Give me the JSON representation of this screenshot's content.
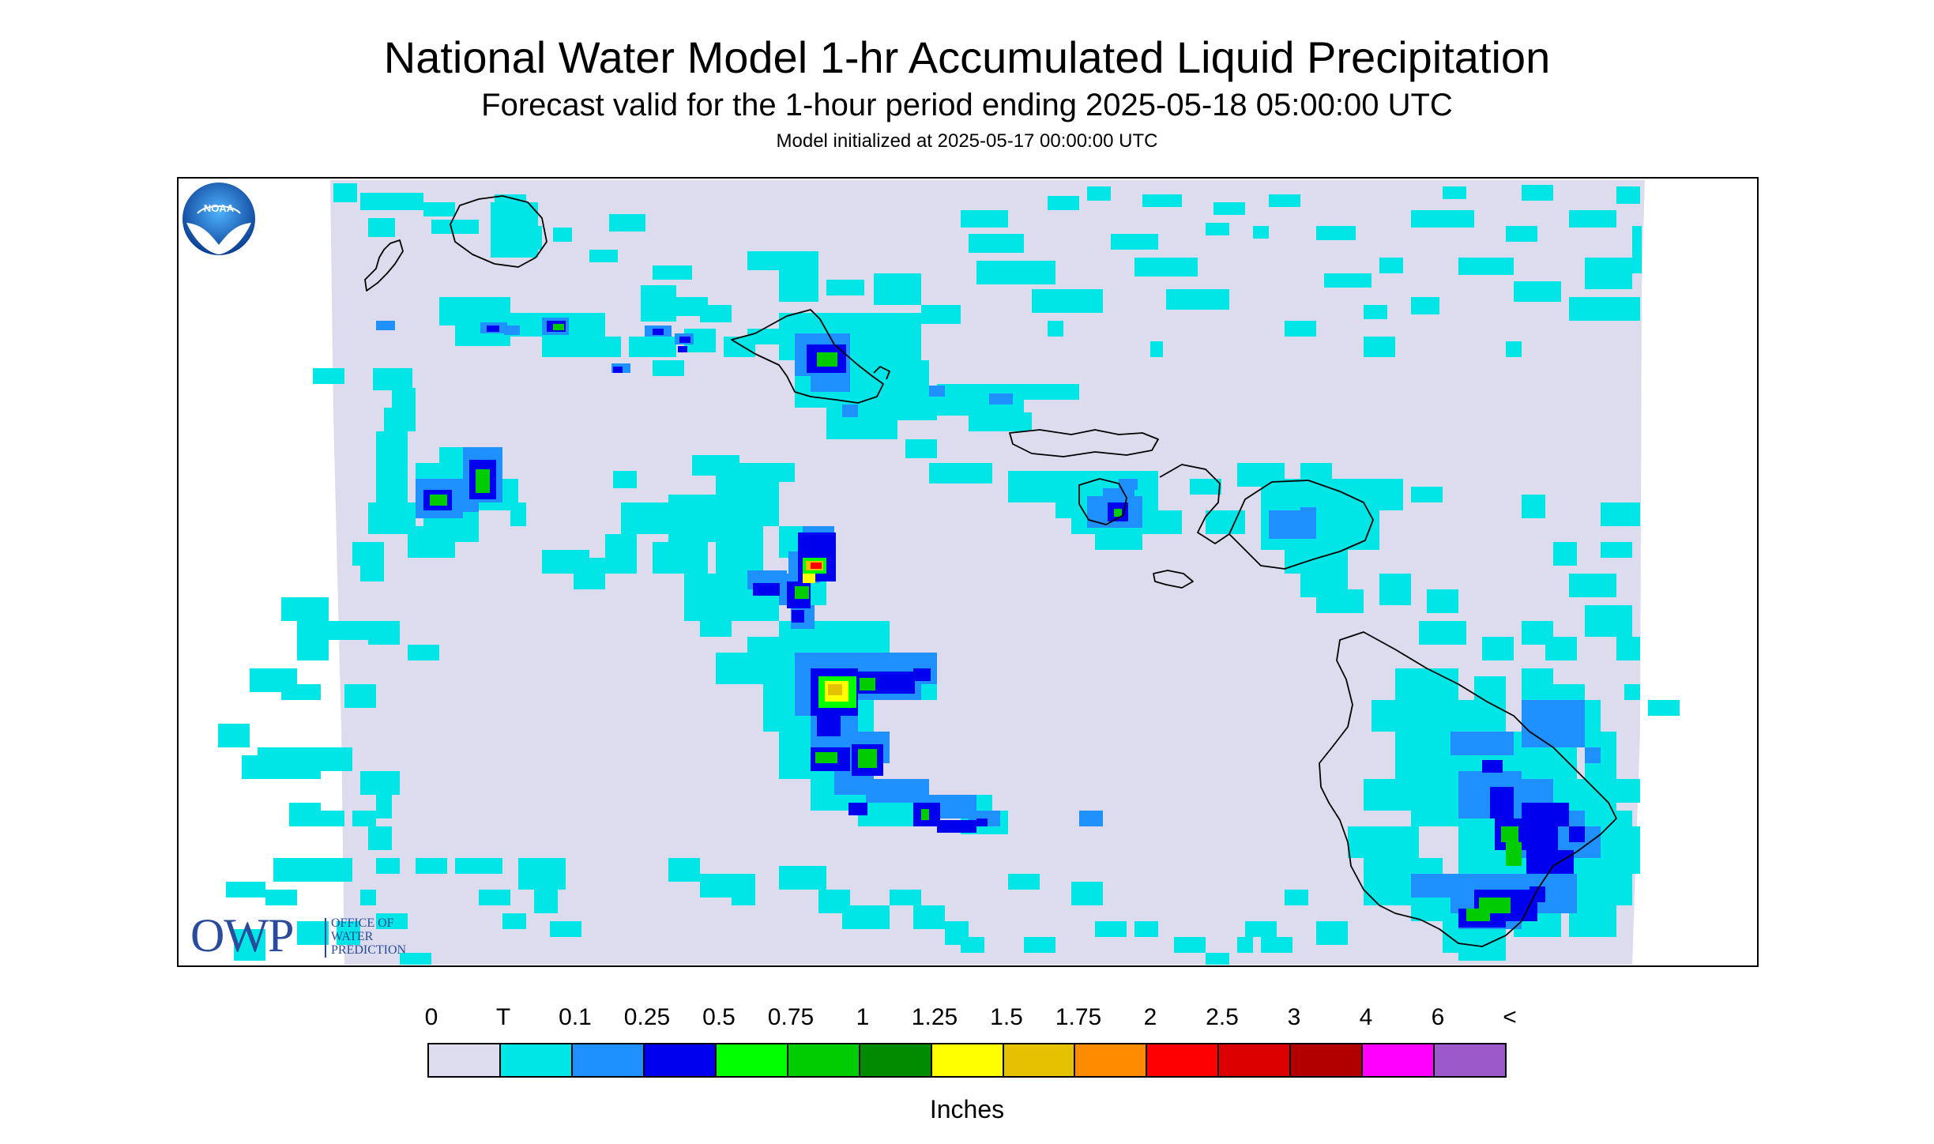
{
  "header": {
    "title": "National Water Model 1-hr Accumulated Liquid Precipitation",
    "subtitle": "Forecast valid for the 1-hour period ending 2025-05-18 05:00:00 UTC",
    "init_line": "Model initialized at 2025-05-17 00:00:00 UTC"
  },
  "logos": {
    "owp_mark": "OWP",
    "owp_text": [
      "OFFICE OF",
      "WATER",
      "PREDICTION"
    ],
    "noaa_text": "NOAA"
  },
  "legend": {
    "labels": [
      "0",
      "T",
      "0.1",
      "0.25",
      "0.5",
      "0.75",
      "1",
      "1.25",
      "1.5",
      "1.75",
      "2",
      "2.5",
      "3",
      "4",
      "6",
      "<"
    ],
    "colors": [
      "#dcdcee",
      "#00e5e5",
      "#1e90ff",
      "#0000ee",
      "#00ff00",
      "#00cd00",
      "#008b00",
      "#ffff00",
      "#e5c100",
      "#ff8c00",
      "#ff0000",
      "#dd0000",
      "#b20000",
      "#ff00ff",
      "#9b59c9"
    ],
    "units": "Inches"
  },
  "colors": {
    "background_domain": "#dcdcee",
    "trace": "#00e5e5",
    "light_blue": "#1e90ff",
    "blue": "#0000ee",
    "green": "#00cd00",
    "yellow": "#ffff00",
    "red": "#ff0000",
    "coastline": "#000000"
  }
}
